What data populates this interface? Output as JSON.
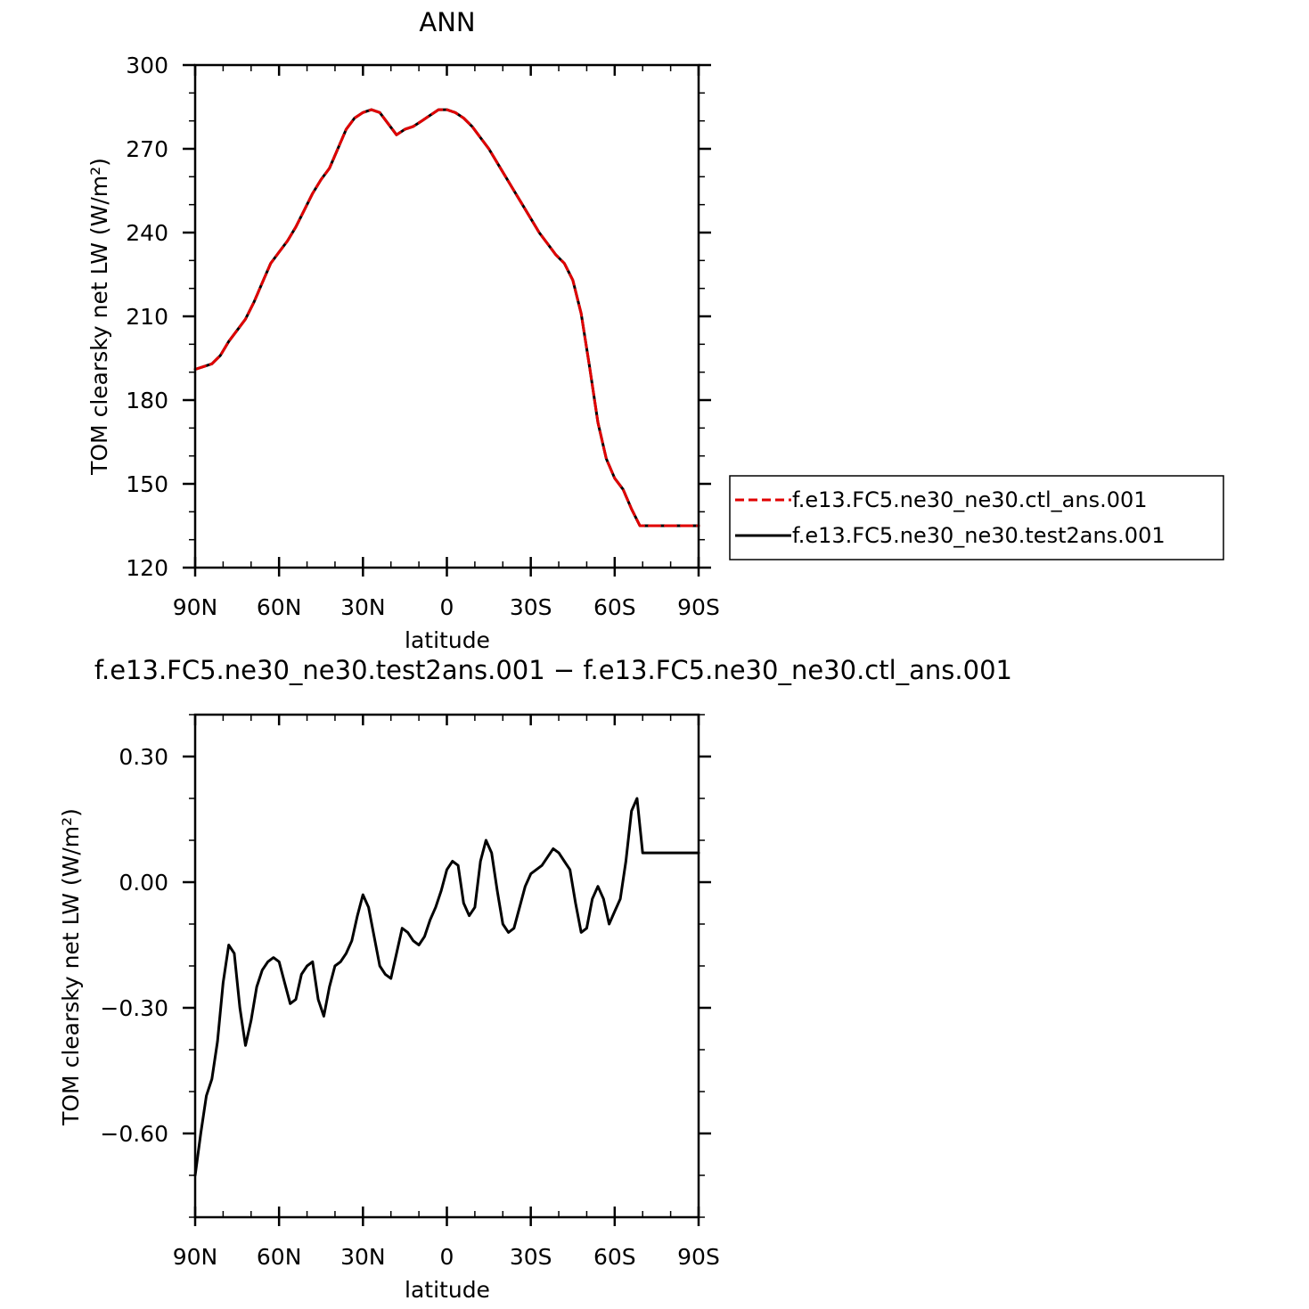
{
  "chart_data": [
    {
      "type": "line",
      "title": "ANN",
      "xlabel": "latitude",
      "ylabel": "TOM clearsky net LW (W/m²)",
      "x_tick_labels": [
        "90N",
        "60N",
        "30N",
        "0",
        "30S",
        "60S",
        "90S"
      ],
      "xlim": [
        90,
        -90
      ],
      "y_tick_labels": [
        "120",
        "150",
        "180",
        "210",
        "240",
        "270",
        "300"
      ],
      "ylim": [
        120,
        300
      ],
      "grid": false,
      "legend_position": "right",
      "series": [
        {
          "name": "f.e13.FC5.ne30_ne30.ctl_ans.001",
          "color": "#e00000",
          "dash": "dashed",
          "x": [
            90,
            87,
            84,
            81,
            78,
            75,
            72,
            69,
            66,
            63,
            60,
            57,
            54,
            51,
            48,
            45,
            42,
            39,
            36,
            33,
            30,
            27,
            24,
            21,
            18,
            15,
            12,
            9,
            6,
            3,
            0,
            -3,
            -6,
            -9,
            -12,
            -15,
            -18,
            -21,
            -24,
            -27,
            -30,
            -33,
            -36,
            -39,
            -42,
            -45,
            -48,
            -51,
            -54,
            -57,
            -60,
            -63,
            -66,
            -69,
            -72,
            -75,
            -78,
            -81,
            -84,
            -87,
            -90
          ],
          "values": [
            191,
            192,
            193,
            196,
            201,
            205,
            209,
            215,
            222,
            229,
            233,
            237,
            242,
            248,
            254,
            259,
            263,
            270,
            277,
            281,
            283,
            284,
            283,
            279,
            275,
            277,
            278,
            280,
            282,
            284,
            284,
            283,
            281,
            278,
            274,
            270,
            265,
            260,
            255,
            250,
            245,
            240,
            236,
            232,
            229,
            223,
            211,
            192,
            172,
            159,
            152,
            148,
            141,
            135,
            135,
            135,
            135,
            135,
            135,
            135,
            135
          ]
        },
        {
          "name": "f.e13.FC5.ne30_ne30.test2ans.001",
          "color": "#000000",
          "dash": "solid",
          "x": [
            90,
            87,
            84,
            81,
            78,
            75,
            72,
            69,
            66,
            63,
            60,
            57,
            54,
            51,
            48,
            45,
            42,
            39,
            36,
            33,
            30,
            27,
            24,
            21,
            18,
            15,
            12,
            9,
            6,
            3,
            0,
            -3,
            -6,
            -9,
            -12,
            -15,
            -18,
            -21,
            -24,
            -27,
            -30,
            -33,
            -36,
            -39,
            -42,
            -45,
            -48,
            -51,
            -54,
            -57,
            -60,
            -63,
            -66,
            -69,
            -72,
            -75,
            -78,
            -81,
            -84,
            -87,
            -90
          ],
          "values": [
            191,
            192,
            193,
            196,
            201,
            205,
            209,
            215,
            222,
            229,
            233,
            237,
            242,
            248,
            254,
            259,
            263,
            270,
            277,
            281,
            283,
            284,
            283,
            279,
            275,
            277,
            278,
            280,
            282,
            284,
            284,
            283,
            281,
            278,
            274,
            270,
            265,
            260,
            255,
            250,
            245,
            240,
            236,
            232,
            229,
            223,
            211,
            192,
            172,
            159,
            152,
            148,
            141,
            135,
            135,
            135,
            135,
            135,
            135,
            135,
            135
          ]
        }
      ]
    },
    {
      "type": "line",
      "title": "f.e13.FC5.ne30_ne30.test2ans.001 − f.e13.FC5.ne30_ne30.ctl_ans.001",
      "xlabel": "latitude",
      "ylabel": "TOM clearsky net LW (W/m²)",
      "x_tick_labels": [
        "90N",
        "60N",
        "30N",
        "0",
        "30S",
        "60S",
        "90S"
      ],
      "xlim": [
        90,
        -90
      ],
      "y_tick_labels": [
        "0.30",
        "0.00",
        "−0.30",
        "−0.60"
      ],
      "ylim": [
        -0.8,
        0.4
      ],
      "grid": false,
      "series": [
        {
          "color": "#000000",
          "dash": "solid",
          "x": [
            90,
            88,
            86,
            84,
            82,
            80,
            78,
            76,
            74,
            72,
            70,
            68,
            66,
            64,
            62,
            60,
            58,
            56,
            54,
            52,
            50,
            48,
            46,
            44,
            42,
            40,
            38,
            36,
            34,
            32,
            30,
            28,
            26,
            24,
            22,
            20,
            18,
            16,
            14,
            12,
            10,
            8,
            6,
            4,
            2,
            0,
            -2,
            -4,
            -6,
            -8,
            -10,
            -12,
            -14,
            -16,
            -18,
            -20,
            -22,
            -24,
            -26,
            -28,
            -30,
            -32,
            -34,
            -36,
            -38,
            -40,
            -42,
            -44,
            -46,
            -48,
            -50,
            -52,
            -54,
            -56,
            -58,
            -60,
            -62,
            -64,
            -66,
            -68,
            -70,
            -72,
            -74,
            -76,
            -78,
            -80,
            -82,
            -84,
            -86,
            -88,
            -90
          ],
          "values": [
            -0.7,
            -0.6,
            -0.51,
            -0.47,
            -0.38,
            -0.24,
            -0.15,
            -0.17,
            -0.3,
            -0.39,
            -0.33,
            -0.25,
            -0.21,
            -0.19,
            -0.18,
            -0.19,
            -0.24,
            -0.29,
            -0.28,
            -0.22,
            -0.2,
            -0.19,
            -0.28,
            -0.32,
            -0.25,
            -0.2,
            -0.19,
            -0.17,
            -0.14,
            -0.08,
            -0.03,
            -0.06,
            -0.13,
            -0.2,
            -0.22,
            -0.23,
            -0.17,
            -0.11,
            -0.12,
            -0.14,
            -0.15,
            -0.13,
            -0.09,
            -0.06,
            -0.02,
            0.03,
            0.05,
            0.04,
            -0.05,
            -0.08,
            -0.06,
            0.05,
            0.1,
            0.07,
            -0.02,
            -0.1,
            -0.12,
            -0.11,
            -0.06,
            -0.01,
            0.02,
            0.03,
            0.04,
            0.06,
            0.08,
            0.07,
            0.05,
            0.03,
            -0.05,
            -0.12,
            -0.11,
            -0.04,
            -0.01,
            -0.04,
            -0.1,
            -0.07,
            -0.04,
            0.05,
            0.17,
            0.2,
            0.07,
            0.07,
            0.07,
            0.07,
            0.07,
            0.07,
            0.07,
            0.07,
            0.07,
            0.07,
            0.07
          ]
        }
      ]
    }
  ]
}
